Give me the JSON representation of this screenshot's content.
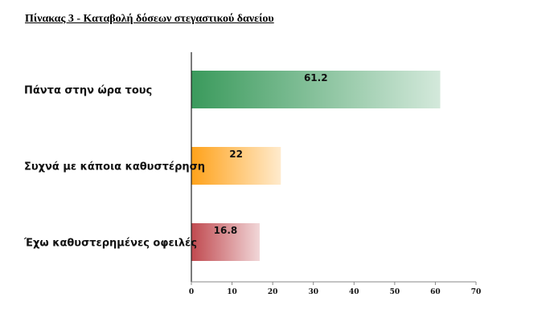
{
  "chart_data": {
    "type": "bar",
    "orientation": "horizontal",
    "title": "Πίνακας 3 - Καταβολή δόσεων στεγαστικού δανείου",
    "categories": [
      "Πάντα στην ώρα τους",
      "Συχνά με κάποια καθυστέρηση",
      "Έχω καθυστερημένες οφειλές"
    ],
    "values": [
      61.2,
      22,
      16.8
    ],
    "colors": [
      "#3a9a5c",
      "#ffa21a",
      "#c0494f"
    ],
    "xlim": [
      0,
      70
    ],
    "xticks": [
      0,
      10,
      20,
      30,
      40,
      50,
      60,
      70
    ],
    "xlabel": "",
    "ylabel": "",
    "grid": false,
    "legend": "none"
  }
}
